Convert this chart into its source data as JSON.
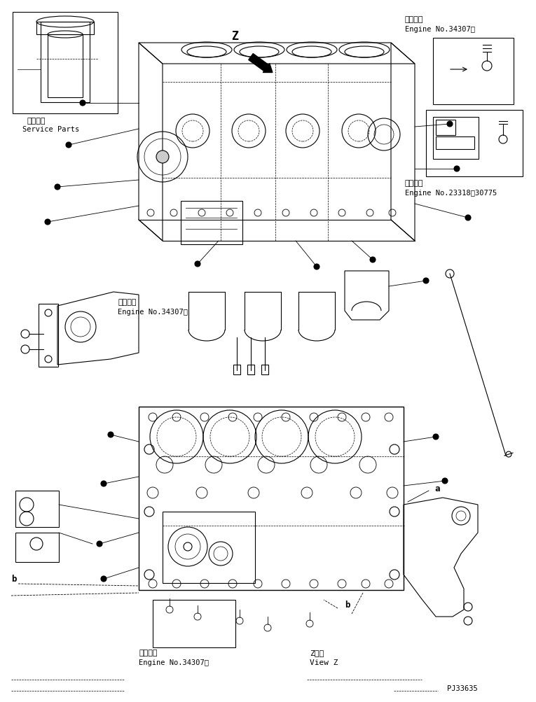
{
  "title": "",
  "background_color": "#ffffff",
  "line_color": "#000000",
  "text_color": "#000000",
  "fig_width": 7.65,
  "fig_height": 10.04,
  "dpi": 100,
  "labels": {
    "service_parts_jp": "捕給専用",
    "service_parts_en": "Service Parts",
    "applicable_engine1_jp": "適用号機",
    "applicable_engine1_en": "Engine No.34307～",
    "applicable_engine2_jp": "適用号機",
    "applicable_engine2_en": "Engine No.23318～30775",
    "applicable_engine3_jp": "適用号機",
    "applicable_engine3_en": "Engine No.34307～",
    "applicable_engine4_jp": "適用号機",
    "applicable_engine4_en": "Engine No.34307～",
    "view_z_jp": "Z　視",
    "view_z_en": "View Z",
    "z_label": "Z",
    "a_label": "a",
    "b_label": "b",
    "part_number": "PJ33635"
  }
}
